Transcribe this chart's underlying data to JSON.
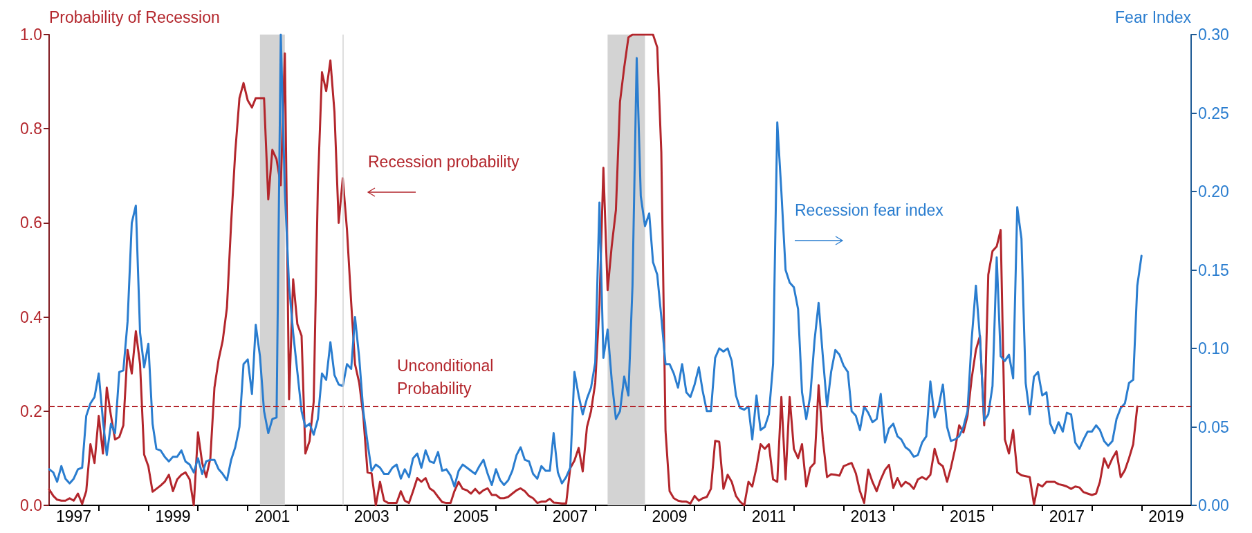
{
  "chart_data": {
    "type": "line",
    "ylabel": "Probability of Recession",
    "y2label": "Fear Index",
    "x": [
      "1997-01",
      "1997-02",
      "1997-03",
      "1997-04",
      "1997-05",
      "1997-06",
      "1997-07",
      "1997-08",
      "1997-09",
      "1997-10",
      "1997-11",
      "1997-12",
      "1998-01",
      "1998-02",
      "1998-03",
      "1998-04",
      "1998-05",
      "1998-06",
      "1998-07",
      "1998-08",
      "1998-09",
      "1998-10",
      "1998-11",
      "1998-12",
      "1999-01",
      "1999-02",
      "1999-03",
      "1999-04",
      "1999-05",
      "1999-06",
      "1999-07",
      "1999-08",
      "1999-09",
      "1999-10",
      "1999-11",
      "1999-12",
      "2000-01",
      "2000-02",
      "2000-03",
      "2000-04",
      "2000-05",
      "2000-06",
      "2000-07",
      "2000-08",
      "2000-09",
      "2000-10",
      "2000-11",
      "2000-12",
      "2001-01",
      "2001-02",
      "2001-03",
      "2001-04",
      "2001-05",
      "2001-06",
      "2001-07",
      "2001-08",
      "2001-09",
      "2001-10",
      "2001-11",
      "2001-12",
      "2002-01",
      "2002-02",
      "2002-03",
      "2002-04",
      "2002-05",
      "2002-06",
      "2002-07",
      "2002-08",
      "2002-09",
      "2002-10",
      "2002-11",
      "2002-12",
      "2003-01",
      "2003-02",
      "2003-03",
      "2003-04",
      "2003-05",
      "2003-06",
      "2003-07",
      "2003-08",
      "2003-09",
      "2003-10",
      "2003-11",
      "2003-12",
      "2004-01",
      "2004-02",
      "2004-03",
      "2004-04",
      "2004-05",
      "2004-06",
      "2004-07",
      "2004-08",
      "2004-09",
      "2004-10",
      "2004-11",
      "2004-12",
      "2005-01",
      "2005-02",
      "2005-03",
      "2005-04",
      "2005-05",
      "2005-06",
      "2005-07",
      "2005-08",
      "2005-09",
      "2005-10",
      "2005-11",
      "2005-12",
      "2006-01",
      "2006-02",
      "2006-03",
      "2006-04",
      "2006-05",
      "2006-06",
      "2006-07",
      "2006-08",
      "2006-09",
      "2006-10",
      "2006-11",
      "2006-12",
      "2007-01",
      "2007-02",
      "2007-03",
      "2007-04",
      "2007-05",
      "2007-06",
      "2007-07",
      "2007-08",
      "2007-09",
      "2007-10",
      "2007-11",
      "2007-12",
      "2008-01",
      "2008-02",
      "2008-03",
      "2008-04",
      "2008-05",
      "2008-06",
      "2008-07",
      "2008-08",
      "2008-09",
      "2008-10",
      "2008-11",
      "2008-12",
      "2009-01",
      "2009-02",
      "2009-03",
      "2009-04",
      "2009-05",
      "2009-06",
      "2009-07",
      "2009-08",
      "2009-09",
      "2009-10",
      "2009-11",
      "2009-12",
      "2010-01",
      "2010-02",
      "2010-03",
      "2010-04",
      "2010-05",
      "2010-06",
      "2010-07",
      "2010-08",
      "2010-09",
      "2010-10",
      "2010-11",
      "2010-12",
      "2011-01",
      "2011-02",
      "2011-03",
      "2011-04",
      "2011-05",
      "2011-06",
      "2011-07",
      "2011-08",
      "2011-09",
      "2011-10",
      "2011-11",
      "2011-12",
      "2012-01",
      "2012-02",
      "2012-03",
      "2012-04",
      "2012-05",
      "2012-06",
      "2012-07",
      "2012-08",
      "2012-09",
      "2012-10",
      "2012-11",
      "2012-12",
      "2013-01",
      "2013-02",
      "2013-03",
      "2013-04",
      "2013-05",
      "2013-06",
      "2013-07",
      "2013-08",
      "2013-09",
      "2013-10",
      "2013-11",
      "2013-12",
      "2014-01",
      "2014-02",
      "2014-03",
      "2014-04",
      "2014-05",
      "2014-06",
      "2014-07",
      "2014-08",
      "2014-09",
      "2014-10",
      "2014-11",
      "2014-12",
      "2015-01",
      "2015-02",
      "2015-03",
      "2015-04",
      "2015-05",
      "2015-06",
      "2015-07",
      "2015-08",
      "2015-09",
      "2015-10",
      "2015-11",
      "2015-12",
      "2016-01",
      "2016-02",
      "2016-03",
      "2016-04",
      "2016-05",
      "2016-06",
      "2016-07",
      "2016-08",
      "2016-09",
      "2016-10",
      "2016-11",
      "2016-12",
      "2017-01",
      "2017-02",
      "2017-03",
      "2017-04",
      "2017-05",
      "2017-06",
      "2017-07",
      "2017-08",
      "2017-09",
      "2017-10",
      "2017-11",
      "2017-12",
      "2018-01",
      "2018-02",
      "2018-03",
      "2018-04",
      "2018-05",
      "2018-06",
      "2018-07",
      "2018-08",
      "2018-09",
      "2018-10",
      "2018-11",
      "2018-12",
      "2019-01"
    ],
    "series": [
      {
        "name": "Recession probability",
        "color": "#b3262c",
        "values": [
          0.034,
          0.02,
          0.012,
          0.01,
          0.01,
          0.015,
          0.01,
          0.025,
          0.003,
          0.03,
          0.13,
          0.09,
          0.19,
          0.11,
          0.25,
          0.19,
          0.14,
          0.145,
          0.17,
          0.33,
          0.28,
          0.37,
          0.3,
          0.108,
          0.083,
          0.029,
          0.035,
          0.042,
          0.05,
          0.065,
          0.03,
          0.055,
          0.065,
          0.07,
          0.055,
          0.0,
          0.155,
          0.09,
          0.06,
          0.1,
          0.25,
          0.31,
          0.35,
          0.42,
          0.6,
          0.75,
          0.865,
          0.897,
          0.86,
          0.845,
          0.865,
          0.865,
          0.865,
          0.65,
          0.755,
          0.735,
          0.68,
          0.96,
          0.225,
          0.48,
          0.385,
          0.36,
          0.11,
          0.137,
          0.22,
          0.68,
          0.92,
          0.88,
          0.945,
          0.835,
          0.6,
          0.695,
          0.585,
          0.43,
          0.3,
          0.26,
          0.19,
          0.07,
          0.068,
          0.0,
          0.05,
          0.01,
          0.005,
          0.005,
          0.005,
          0.03,
          0.01,
          0.005,
          0.03,
          0.058,
          0.05,
          0.058,
          0.036,
          0.03,
          0.018,
          0.007,
          0.005,
          0.005,
          0.03,
          0.05,
          0.035,
          0.032,
          0.025,
          0.035,
          0.025,
          0.032,
          0.036,
          0.022,
          0.022,
          0.015,
          0.015,
          0.018,
          0.025,
          0.032,
          0.036,
          0.03,
          0.02,
          0.015,
          0.005,
          0.008,
          0.008,
          0.014,
          0.006,
          0.005,
          0.004,
          0.004,
          0.079,
          0.095,
          0.122,
          0.072,
          0.166,
          0.2,
          0.26,
          0.425,
          0.717,
          0.457,
          0.55,
          0.627,
          0.857,
          0.93,
          0.994,
          1.0,
          1.0,
          1.0,
          1.0,
          1.0,
          1.0,
          0.973,
          0.75,
          0.158,
          0.03,
          0.015,
          0.01,
          0.008,
          0.008,
          0.004,
          0.02,
          0.01,
          0.015,
          0.018,
          0.035,
          0.137,
          0.135,
          0.035,
          0.065,
          0.05,
          0.02,
          0.008,
          0.0,
          0.05,
          0.04,
          0.08,
          0.13,
          0.12,
          0.13,
          0.055,
          0.05,
          0.23,
          0.055,
          0.23,
          0.12,
          0.1,
          0.13,
          0.04,
          0.08,
          0.09,
          0.255,
          0.14,
          0.06,
          0.066,
          0.065,
          0.063,
          0.083,
          0.087,
          0.09,
          0.068,
          0.03,
          0.005,
          0.076,
          0.05,
          0.03,
          0.055,
          0.075,
          0.086,
          0.037,
          0.058,
          0.04,
          0.05,
          0.045,
          0.035,
          0.055,
          0.06,
          0.055,
          0.065,
          0.12,
          0.09,
          0.083,
          0.05,
          0.08,
          0.12,
          0.17,
          0.155,
          0.19,
          0.27,
          0.33,
          0.36,
          0.17,
          0.49,
          0.54,
          0.55,
          0.585,
          0.14,
          0.11,
          0.16,
          0.07,
          0.064,
          0.062,
          0.06,
          0.002,
          0.045,
          0.04,
          0.05,
          0.05,
          0.05,
          0.045,
          0.043,
          0.04,
          0.035,
          0.04,
          0.038,
          0.028,
          0.025,
          0.022,
          0.025,
          0.05,
          0.1,
          0.08,
          0.1,
          0.115,
          0.06,
          0.075,
          0.1,
          0.13,
          0.21,
          null
        ]
      },
      {
        "name": "Recession fear index",
        "color": "#2a7dcf",
        "axis": "y2",
        "values": [
          0.023,
          0.021,
          0.015,
          0.025,
          0.017,
          0.014,
          0.017,
          0.023,
          0.024,
          0.057,
          0.065,
          0.069,
          0.084,
          0.054,
          0.032,
          0.052,
          0.046,
          0.085,
          0.086,
          0.117,
          0.18,
          0.191,
          0.11,
          0.088,
          0.103,
          0.052,
          0.036,
          0.035,
          0.031,
          0.028,
          0.031,
          0.031,
          0.035,
          0.028,
          0.026,
          0.021,
          0.03,
          0.02,
          0.028,
          0.029,
          0.029,
          0.023,
          0.02,
          0.016,
          0.029,
          0.037,
          0.05,
          0.09,
          0.093,
          0.071,
          0.115,
          0.095,
          0.06,
          0.046,
          0.055,
          0.056,
          0.3,
          0.2,
          0.14,
          0.11,
          0.085,
          0.06,
          0.05,
          0.052,
          0.045,
          0.055,
          0.084,
          0.08,
          0.104,
          0.083,
          0.077,
          0.076,
          0.09,
          0.087,
          0.12,
          0.094,
          0.06,
          0.04,
          0.022,
          0.026,
          0.024,
          0.02,
          0.02,
          0.024,
          0.026,
          0.017,
          0.023,
          0.018,
          0.03,
          0.033,
          0.024,
          0.035,
          0.028,
          0.027,
          0.034,
          0.022,
          0.023,
          0.019,
          0.012,
          0.022,
          0.026,
          0.024,
          0.022,
          0.02,
          0.025,
          0.029,
          0.02,
          0.013,
          0.023,
          0.016,
          0.013,
          0.016,
          0.022,
          0.032,
          0.037,
          0.029,
          0.028,
          0.02,
          0.017,
          0.025,
          0.022,
          0.022,
          0.046,
          0.021,
          0.014,
          0.018,
          0.024,
          0.085,
          0.07,
          0.058,
          0.068,
          0.075,
          0.091,
          0.193,
          0.094,
          0.112,
          0.08,
          0.055,
          0.06,
          0.082,
          0.07,
          0.14,
          0.285,
          0.197,
          0.178,
          0.186,
          0.155,
          0.147,
          0.12,
          0.09,
          0.09,
          0.084,
          0.075,
          0.09,
          0.072,
          0.069,
          0.077,
          0.088,
          0.073,
          0.06,
          0.06,
          0.094,
          0.1,
          0.098,
          0.1,
          0.092,
          0.07,
          0.062,
          0.061,
          0.063,
          0.042,
          0.07,
          0.048,
          0.05,
          0.058,
          0.09,
          0.244,
          0.2,
          0.15,
          0.142,
          0.139,
          0.125,
          0.072,
          0.055,
          0.07,
          0.105,
          0.129,
          0.095,
          0.063,
          0.085,
          0.099,
          0.096,
          0.089,
          0.085,
          0.06,
          0.057,
          0.048,
          0.063,
          0.059,
          0.053,
          0.055,
          0.071,
          0.04,
          0.049,
          0.052,
          0.044,
          0.042,
          0.037,
          0.035,
          0.031,
          0.032,
          0.04,
          0.044,
          0.079,
          0.056,
          0.063,
          0.077,
          0.05,
          0.041,
          0.042,
          0.044,
          0.05,
          0.06,
          0.106,
          0.14,
          0.106,
          0.054,
          0.058,
          0.076,
          0.158,
          0.095,
          0.092,
          0.096,
          0.081,
          0.19,
          0.17,
          0.078,
          0.058,
          0.082,
          0.085,
          0.07,
          0.072,
          0.052,
          0.046,
          0.053,
          0.047,
          0.059,
          0.058,
          0.04,
          0.036,
          0.042,
          0.047,
          0.047,
          0.051,
          0.048,
          0.041,
          0.038,
          0.041,
          0.055,
          0.062,
          0.065,
          0.078,
          0.08,
          0.14,
          0.159
        ]
      }
    ],
    "xlim": [
      "1997-01",
      "2020-01"
    ],
    "xticks": [
      {
        "value": "1997-07",
        "label": "1997"
      },
      {
        "value": "1998",
        "label": null
      },
      {
        "value": "1999",
        "label": null
      },
      {
        "value": "1999-07",
        "label": "1999"
      },
      {
        "value": "2000",
        "label": null
      },
      {
        "value": "2001",
        "label": null
      },
      {
        "value": "2001-07",
        "label": "2001"
      },
      {
        "value": "2002",
        "label": null
      },
      {
        "value": "2003",
        "label": null
      },
      {
        "value": "2003-07",
        "label": "2003"
      },
      {
        "value": "2004",
        "label": null
      },
      {
        "value": "2005",
        "label": null
      },
      {
        "value": "2005-07",
        "label": "2005"
      },
      {
        "value": "2006",
        "label": null
      },
      {
        "value": "2007",
        "label": null
      },
      {
        "value": "2007-07",
        "label": "2007"
      },
      {
        "value": "2008",
        "label": null
      },
      {
        "value": "2009",
        "label": null
      },
      {
        "value": "2009-07",
        "label": "2009"
      },
      {
        "value": "2010",
        "label": null
      },
      {
        "value": "2011",
        "label": null
      },
      {
        "value": "2011-07",
        "label": "2011"
      },
      {
        "value": "2012",
        "label": null
      },
      {
        "value": "2013",
        "label": null
      },
      {
        "value": "2013-07",
        "label": "2013"
      },
      {
        "value": "2014",
        "label": null
      },
      {
        "value": "2015",
        "label": null
      },
      {
        "value": "2015-07",
        "label": "2015"
      },
      {
        "value": "2016",
        "label": null
      },
      {
        "value": "2017",
        "label": null
      },
      {
        "value": "2017-07",
        "label": "2017"
      },
      {
        "value": "2018",
        "label": null
      },
      {
        "value": "2019",
        "label": null
      },
      {
        "value": "2019-07",
        "label": "2019"
      }
    ],
    "ylim": [
      0,
      1
    ],
    "yticks": [
      {
        "value": 0,
        "label": "0.0"
      },
      {
        "value": 0.2,
        "label": "0.2"
      },
      {
        "value": 0.4,
        "label": "0.4"
      },
      {
        "value": 0.6,
        "label": "0.6"
      },
      {
        "value": 0.8,
        "label": "0.8"
      },
      {
        "value": 1,
        "label": "1.0"
      }
    ],
    "y2lim": [
      0,
      0.3
    ],
    "y2ticks": [
      {
        "value": 0,
        "label": "0.00"
      },
      {
        "value": 0.05,
        "label": "0.05"
      },
      {
        "value": 0.1,
        "label": "0.10"
      },
      {
        "value": 0.15,
        "label": "0.15"
      },
      {
        "value": 0.2,
        "label": "0.20"
      },
      {
        "value": 0.25,
        "label": "0.25"
      },
      {
        "value": 0.3,
        "label": "0.30"
      }
    ],
    "bands": [
      {
        "axis": "x",
        "from": "2001-04",
        "to": "2001-10",
        "color": "#d3d3d3"
      },
      {
        "axis": "x",
        "from": "2008-04",
        "to": "2009-01",
        "color": "#d3d3d3"
      }
    ],
    "ref_lines": [
      {
        "axis": "y",
        "value": 0.21,
        "label": "Unconditional Probability",
        "color": "#b3262c",
        "line_style": "dashed"
      },
      {
        "axis": "x",
        "value": "2002-12",
        "color": "#d3d3d3"
      }
    ]
  }
}
